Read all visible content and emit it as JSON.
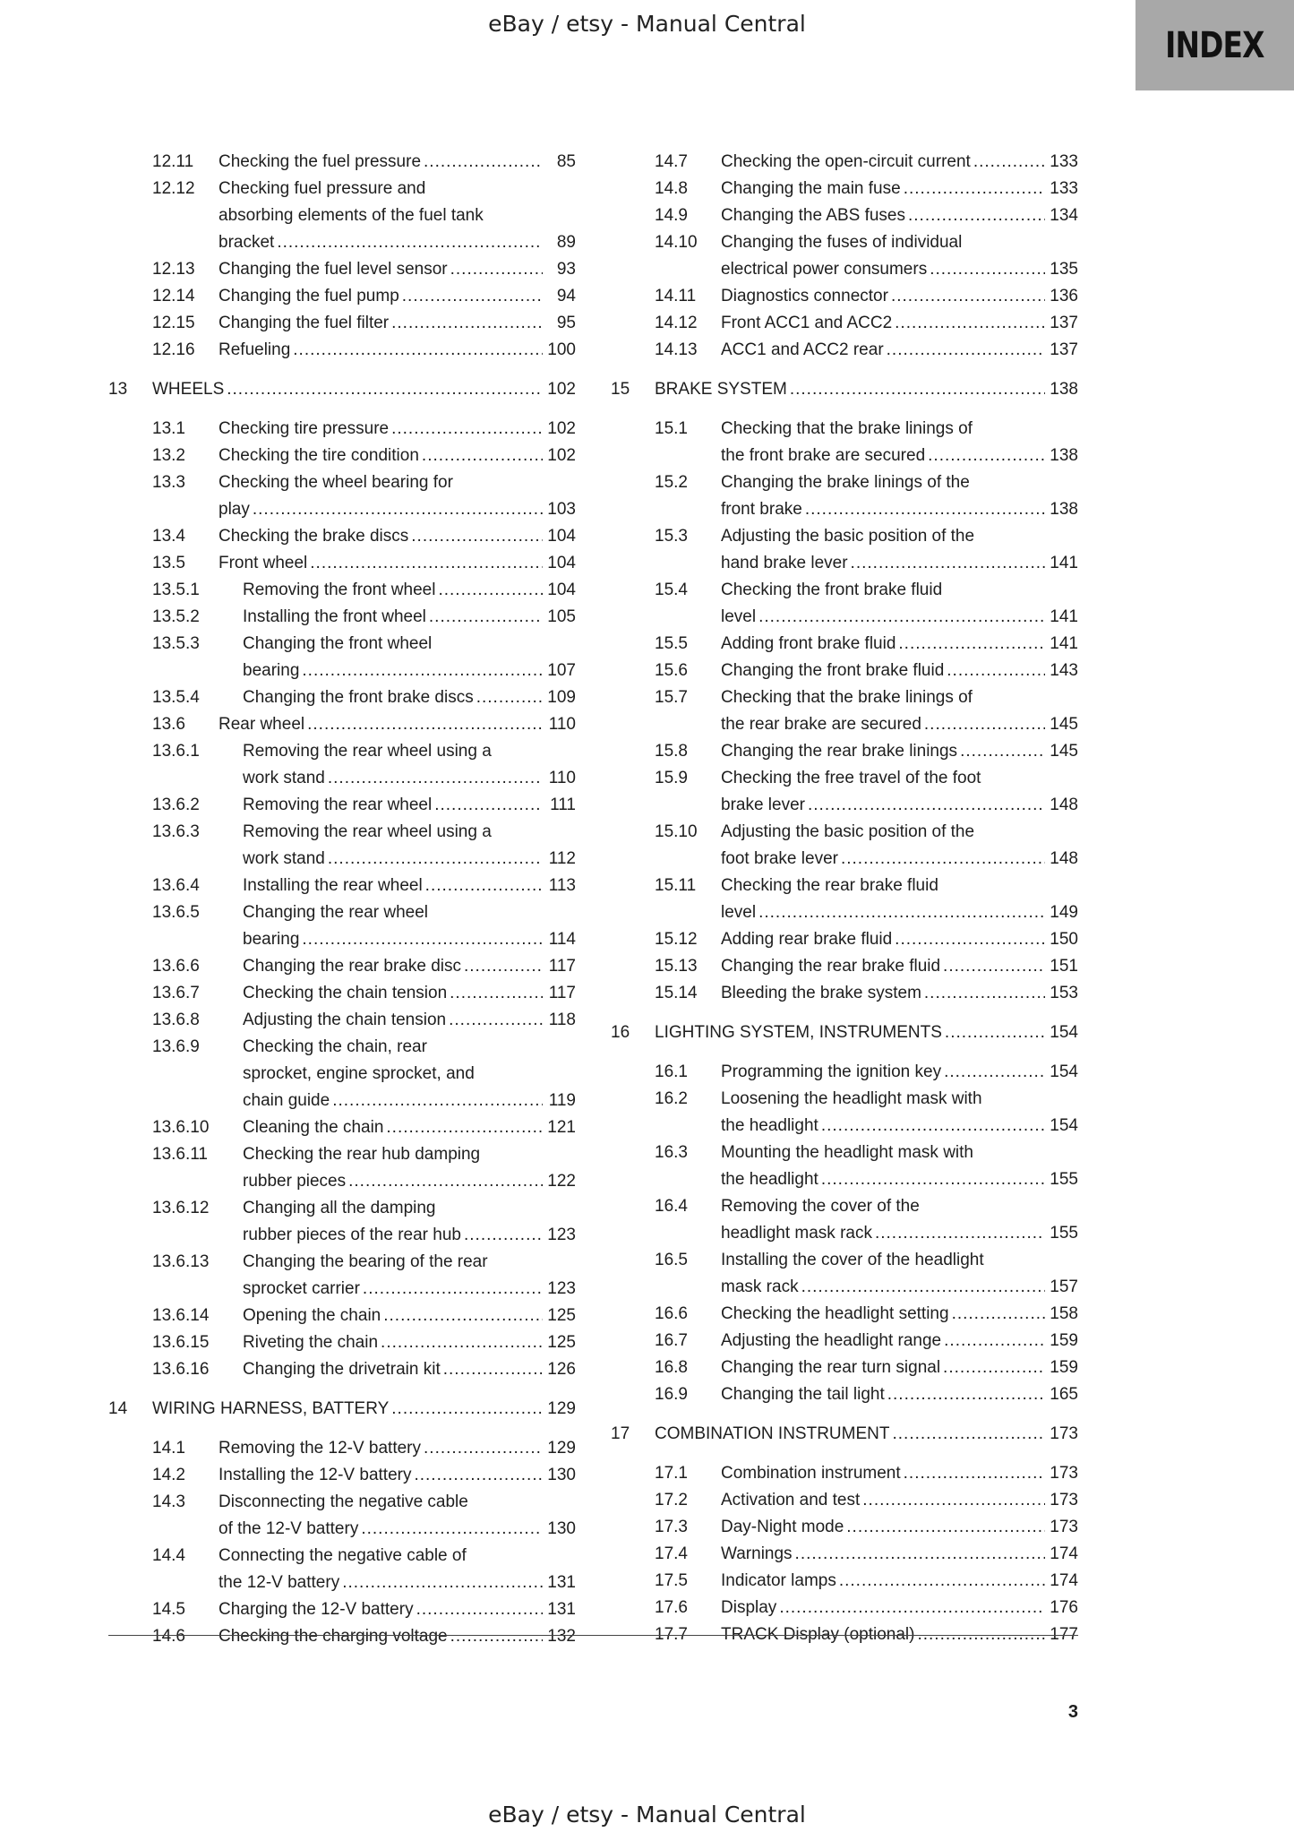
{
  "header": {
    "text": "eBay / etsy - Manual Central"
  },
  "footer": {
    "text": "eBay / etsy - Manual Central",
    "page_number": "3"
  },
  "index_tab": {
    "label": "INDEX",
    "color": "#a8a8a8"
  },
  "left_column": [
    {
      "n": "12.11",
      "lines": [
        "Checking the fuel pressure"
      ],
      "p": "85"
    },
    {
      "n": "12.12",
      "lines": [
        "Checking fuel pressure and",
        "absorbing elements of the fuel tank",
        "bracket"
      ],
      "p": "89"
    },
    {
      "n": "12.13",
      "lines": [
        "Changing the fuel level sensor"
      ],
      "p": "93"
    },
    {
      "n": "12.14",
      "lines": [
        "Changing the fuel pump"
      ],
      "p": "94"
    },
    {
      "n": "12.15",
      "lines": [
        "Changing the fuel filter"
      ],
      "p": "95"
    },
    {
      "n": "12.16",
      "lines": [
        "Refueling"
      ],
      "p": "100"
    },
    {
      "n": "13",
      "lines": [
        "WHEELS"
      ],
      "p": "102",
      "heading": true
    },
    {
      "n": "13.1",
      "lines": [
        "Checking tire pressure"
      ],
      "p": "102"
    },
    {
      "n": "13.2",
      "lines": [
        "Checking the tire condition"
      ],
      "p": "102"
    },
    {
      "n": "13.3",
      "lines": [
        "Checking the wheel bearing for",
        "play"
      ],
      "p": "103"
    },
    {
      "n": "13.4",
      "lines": [
        "Checking the brake discs"
      ],
      "p": "104"
    },
    {
      "n": "13.5",
      "lines": [
        "Front wheel"
      ],
      "p": "104"
    },
    {
      "n": "13.5.1",
      "lines": [
        "Removing the front wheel"
      ],
      "p": "104",
      "sub": true
    },
    {
      "n": "13.5.2",
      "lines": [
        "Installing the front wheel"
      ],
      "p": "105",
      "sub": true
    },
    {
      "n": "13.5.3",
      "lines": [
        "Changing the front wheel",
        "bearing"
      ],
      "p": "107",
      "sub": true
    },
    {
      "n": "13.5.4",
      "lines": [
        "Changing the front brake discs"
      ],
      "p": "109",
      "sub": true
    },
    {
      "n": "13.6",
      "lines": [
        "Rear wheel"
      ],
      "p": "110"
    },
    {
      "n": "13.6.1",
      "lines": [
        "Removing the rear wheel using a",
        "work stand"
      ],
      "p": "110",
      "sub": true
    },
    {
      "n": "13.6.2",
      "lines": [
        "Removing the rear wheel"
      ],
      "p": "111",
      "sub": true
    },
    {
      "n": "13.6.3",
      "lines": [
        "Removing the rear wheel using a",
        "work stand"
      ],
      "p": "112",
      "sub": true
    },
    {
      "n": "13.6.4",
      "lines": [
        "Installing the rear wheel"
      ],
      "p": "113",
      "sub": true
    },
    {
      "n": "13.6.5",
      "lines": [
        "Changing the rear wheel",
        "bearing"
      ],
      "p": "114",
      "sub": true
    },
    {
      "n": "13.6.6",
      "lines": [
        "Changing the rear brake disc"
      ],
      "p": "117",
      "sub": true
    },
    {
      "n": "13.6.7",
      "lines": [
        "Checking the chain tension"
      ],
      "p": "117",
      "sub": true
    },
    {
      "n": "13.6.8",
      "lines": [
        "Adjusting the chain tension"
      ],
      "p": "118",
      "sub": true
    },
    {
      "n": "13.6.9",
      "lines": [
        "Checking the chain, rear",
        "sprocket, engine sprocket, and",
        "chain guide"
      ],
      "p": "119",
      "sub": true
    },
    {
      "n": "13.6.10",
      "lines": [
        "Cleaning the chain"
      ],
      "p": "121",
      "sub": true
    },
    {
      "n": "13.6.11",
      "lines": [
        "Checking the rear hub damping",
        "rubber pieces"
      ],
      "p": "122",
      "sub": true
    },
    {
      "n": "13.6.12",
      "lines": [
        "Changing all the damping",
        "rubber pieces of the rear hub"
      ],
      "p": "123",
      "sub": true
    },
    {
      "n": "13.6.13",
      "lines": [
        "Changing the bearing of the rear",
        "sprocket carrier"
      ],
      "p": "123",
      "sub": true
    },
    {
      "n": "13.6.14",
      "lines": [
        "Opening the chain"
      ],
      "p": "125",
      "sub": true
    },
    {
      "n": "13.6.15",
      "lines": [
        "Riveting the chain"
      ],
      "p": "125",
      "sub": true
    },
    {
      "n": "13.6.16",
      "lines": [
        "Changing the drivetrain kit"
      ],
      "p": "126",
      "sub": true
    },
    {
      "n": "14",
      "lines": [
        "WIRING HARNESS, BATTERY"
      ],
      "p": "129",
      "heading": true
    },
    {
      "n": "14.1",
      "lines": [
        "Removing the 12-V battery"
      ],
      "p": "129"
    },
    {
      "n": "14.2",
      "lines": [
        "Installing the 12-V battery"
      ],
      "p": "130"
    },
    {
      "n": "14.3",
      "lines": [
        "Disconnecting the negative cable",
        "of the 12-V battery"
      ],
      "p": "130"
    },
    {
      "n": "14.4",
      "lines": [
        "Connecting the negative cable of",
        "the 12-V battery"
      ],
      "p": "131"
    },
    {
      "n": "14.5",
      "lines": [
        "Charging the 12-V battery"
      ],
      "p": "131"
    },
    {
      "n": "14.6",
      "lines": [
        "Checking the charging voltage"
      ],
      "p": "132"
    }
  ],
  "right_column": [
    {
      "n": "14.7",
      "lines": [
        "Checking the open-circuit current"
      ],
      "p": "133"
    },
    {
      "n": "14.8",
      "lines": [
        "Changing the main fuse"
      ],
      "p": "133"
    },
    {
      "n": "14.9",
      "lines": [
        "Changing the ABS fuses"
      ],
      "p": "134"
    },
    {
      "n": "14.10",
      "lines": [
        "Changing the fuses of individual",
        "electrical power consumers"
      ],
      "p": "135"
    },
    {
      "n": "14.11",
      "lines": [
        "Diagnostics connector"
      ],
      "p": "136"
    },
    {
      "n": "14.12",
      "lines": [
        "Front ACC1 and ACC2"
      ],
      "p": "137"
    },
    {
      "n": "14.13",
      "lines": [
        "ACC1 and ACC2 rear"
      ],
      "p": "137"
    },
    {
      "n": "15",
      "lines": [
        "BRAKE SYSTEM"
      ],
      "p": "138",
      "heading": true
    },
    {
      "n": "15.1",
      "lines": [
        "Checking that the brake linings of",
        "the front brake are secured"
      ],
      "p": "138"
    },
    {
      "n": "15.2",
      "lines": [
        "Changing the brake linings of the",
        "front brake"
      ],
      "p": "138"
    },
    {
      "n": "15.3",
      "lines": [
        "Adjusting the basic position of the",
        "hand brake lever"
      ],
      "p": "141"
    },
    {
      "n": "15.4",
      "lines": [
        "Checking the front brake fluid",
        "level"
      ],
      "p": "141"
    },
    {
      "n": "15.5",
      "lines": [
        "Adding front brake fluid"
      ],
      "p": "141"
    },
    {
      "n": "15.6",
      "lines": [
        "Changing the front brake fluid"
      ],
      "p": "143"
    },
    {
      "n": "15.7",
      "lines": [
        "Checking that the brake linings of",
        "the rear brake are secured"
      ],
      "p": "145"
    },
    {
      "n": "15.8",
      "lines": [
        "Changing the rear brake linings"
      ],
      "p": "145"
    },
    {
      "n": "15.9",
      "lines": [
        "Checking the free travel of the foot",
        "brake lever"
      ],
      "p": "148"
    },
    {
      "n": "15.10",
      "lines": [
        "Adjusting the basic position of the",
        "foot brake lever"
      ],
      "p": "148"
    },
    {
      "n": "15.11",
      "lines": [
        "Checking the rear brake fluid",
        "level"
      ],
      "p": "149"
    },
    {
      "n": "15.12",
      "lines": [
        "Adding rear brake fluid"
      ],
      "p": "150"
    },
    {
      "n": "15.13",
      "lines": [
        "Changing the rear brake fluid"
      ],
      "p": "151"
    },
    {
      "n": "15.14",
      "lines": [
        "Bleeding the brake system"
      ],
      "p": "153"
    },
    {
      "n": "16",
      "lines": [
        "LIGHTING SYSTEM, INSTRUMENTS"
      ],
      "p": "154",
      "heading": true
    },
    {
      "n": "16.1",
      "lines": [
        "Programming the ignition key"
      ],
      "p": "154"
    },
    {
      "n": "16.2",
      "lines": [
        "Loosening the headlight mask with",
        "the headlight"
      ],
      "p": "154"
    },
    {
      "n": "16.3",
      "lines": [
        "Mounting the headlight mask with",
        "the headlight"
      ],
      "p": "155"
    },
    {
      "n": "16.4",
      "lines": [
        "Removing the cover of the",
        "headlight mask rack"
      ],
      "p": "155"
    },
    {
      "n": "16.5",
      "lines": [
        "Installing the cover of the headlight",
        "mask rack"
      ],
      "p": "157"
    },
    {
      "n": "16.6",
      "lines": [
        "Checking the headlight setting"
      ],
      "p": "158"
    },
    {
      "n": "16.7",
      "lines": [
        "Adjusting the headlight range"
      ],
      "p": "159"
    },
    {
      "n": "16.8",
      "lines": [
        "Changing the rear turn signal"
      ],
      "p": "159"
    },
    {
      "n": "16.9",
      "lines": [
        "Changing the tail light"
      ],
      "p": "165"
    },
    {
      "n": "17",
      "lines": [
        "COMBINATION INSTRUMENT"
      ],
      "p": "173",
      "heading": true
    },
    {
      "n": "17.1",
      "lines": [
        "Combination instrument"
      ],
      "p": "173"
    },
    {
      "n": "17.2",
      "lines": [
        "Activation and test"
      ],
      "p": "173"
    },
    {
      "n": "17.3",
      "lines": [
        "Day-Night mode"
      ],
      "p": "173"
    },
    {
      "n": "17.4",
      "lines": [
        "Warnings"
      ],
      "p": "174"
    },
    {
      "n": "17.5",
      "lines": [
        "Indicator lamps"
      ],
      "p": "174"
    },
    {
      "n": "17.6",
      "lines": [
        "Display"
      ],
      "p": "176"
    },
    {
      "n": "17.7",
      "lines": [
        "TRACK Display (optional)"
      ],
      "p": "177"
    }
  ]
}
